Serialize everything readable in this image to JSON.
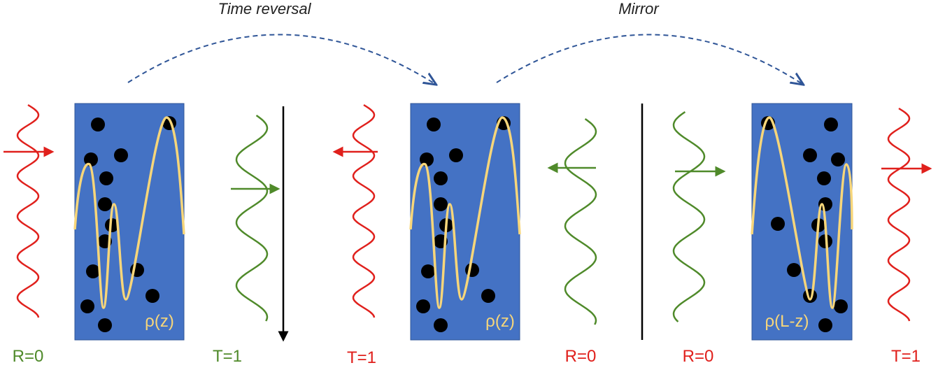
{
  "arrows": [
    {
      "label": "Time reversal"
    },
    {
      "label": "Mirror"
    }
  ],
  "panels": [
    {
      "density": "ρ(z)",
      "left": "R=0",
      "right": "T=1"
    },
    {
      "density": "ρ(z)",
      "left": "T=1",
      "right": "R=0"
    },
    {
      "density": "ρ(L-z)",
      "left": "R=0",
      "right": "T=1"
    }
  ]
}
